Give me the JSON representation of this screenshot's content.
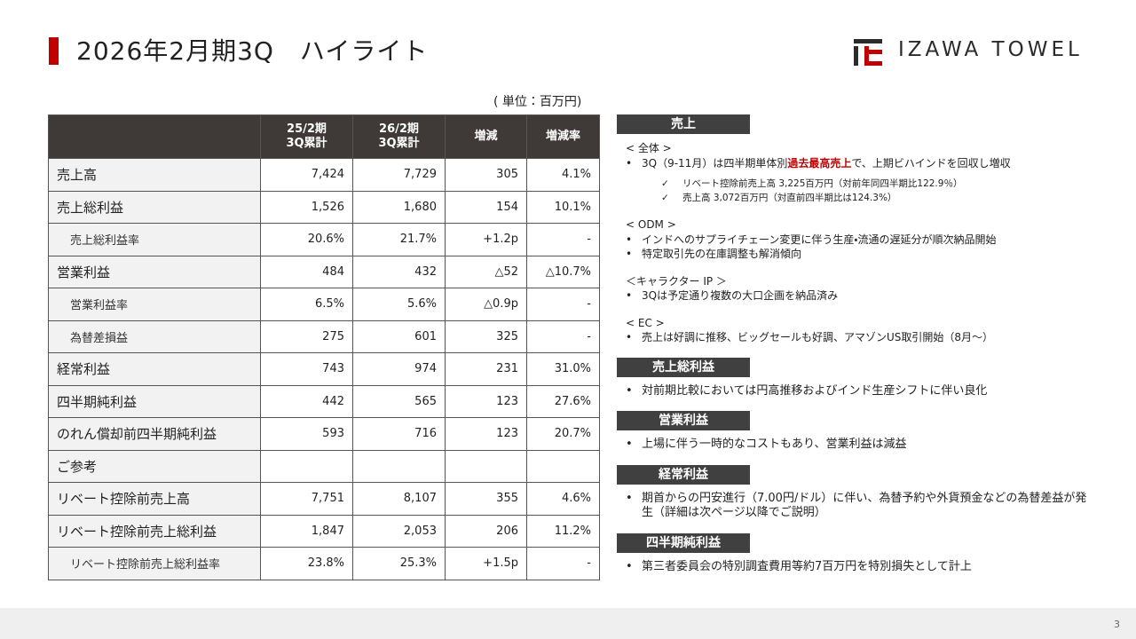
{
  "header": {
    "title": "2026年2月期3Q　ハイライト",
    "logo": "IZAWA TOWEL"
  },
  "table": {
    "unit": "( 単位：百万円)",
    "columns": [
      [
        "25/2期",
        "3Q累計"
      ],
      [
        "26/2期",
        "3Q累計"
      ],
      [
        "増減"
      ],
      [
        "増減率"
      ]
    ],
    "rows": [
      {
        "label": "売上高",
        "values": [
          "7,424",
          "7,729",
          "305",
          "4.1%"
        ]
      },
      {
        "label": "売上総利益",
        "values": [
          "1,526",
          "1,680",
          "154",
          "10.1%"
        ]
      },
      {
        "label": "売上総利益率",
        "sub": true,
        "values": [
          "20.6%",
          "21.7%",
          "+1.2p",
          "-"
        ]
      },
      {
        "label": "営業利益",
        "values": [
          "484",
          "432",
          "△52",
          "△10.7%"
        ]
      },
      {
        "label": "営業利益率",
        "sub": true,
        "values": [
          "6.5%",
          "5.6%",
          "△0.9p",
          "-"
        ]
      },
      {
        "label": "為替差損益",
        "sub": true,
        "values": [
          "275",
          "601",
          "325",
          "-"
        ]
      },
      {
        "label": "経常利益",
        "values": [
          "743",
          "974",
          "231",
          "31.0%"
        ]
      },
      {
        "label": "四半期純利益",
        "values": [
          "442",
          "565",
          "123",
          "27.6%"
        ]
      },
      {
        "label": "のれん償却前四半期純利益",
        "values": [
          "593",
          "716",
          "123",
          "20.7%"
        ]
      }
    ],
    "reference_label": "ご参考",
    "reference_rows": [
      {
        "label": "リベート控除前売上高",
        "values": [
          "7,751",
          "8,107",
          "355",
          "4.6%"
        ]
      },
      {
        "label": "リベート控除前売上総利益",
        "values": [
          "1,847",
          "2,053",
          "206",
          "11.2%"
        ]
      },
      {
        "label": "リベート控除前売上総利益率",
        "sub": true,
        "values": [
          "23.8%",
          "25.3%",
          "+1.5p",
          "-"
        ]
      }
    ]
  },
  "sections": [
    {
      "heading": "売上",
      "groups": [
        {
          "label": "< 全体 >",
          "bullets": [
            {
              "before": "3Q（9-11月）は四半期単体別",
              "highlight": "過去最高売上",
              "after": "で、上期ビハインドを回収し増収"
            }
          ],
          "checks": [
            "リベート控除前売上高 3,225百万円（対前年同四半期比122.9％）",
            "売上高 3,072百万円（対直前四半期比は124.3%）"
          ]
        },
        {
          "label": "< ODM >",
          "bullets": [
            "インドへのサプライチェーン変更に伴う生産・流通の遅延分が順次納品開始",
            "特定取引先の在庫調整も解消傾向"
          ]
        },
        {
          "label": "＜キャラクター IP ＞",
          "bullets": [
            "3Qは予定通り複数の大口企画を納品済み"
          ]
        },
        {
          "label": "< EC >",
          "bullets": [
            "売上は好調に推移、ビッグセールも好調、アマゾンUS取引開始（8月～）"
          ]
        }
      ]
    },
    {
      "heading": "売上総利益",
      "groups": [
        {
          "bullets": [
            "対前期比較においては円高推移およびインド生産シフトに伴い良化"
          ]
        }
      ]
    },
    {
      "heading": "営業利益",
      "groups": [
        {
          "bullets": [
            "上場に伴う一時的なコストもあり、営業利益は減益"
          ]
        }
      ]
    },
    {
      "heading": "経常利益",
      "groups": [
        {
          "bullets": [
            "期首からの円安進行（7.00円/ドル）に伴い、為替予約や外貨預金などの為替差益が発生（詳細は次ページ以降でご説明）"
          ]
        }
      ]
    },
    {
      "heading": "四半期純利益",
      "groups": [
        {
          "bullets": [
            "第三者委員会の特別調査費用等約7百万円を特別損失として計上"
          ]
        }
      ]
    }
  ],
  "page_number": "3"
}
